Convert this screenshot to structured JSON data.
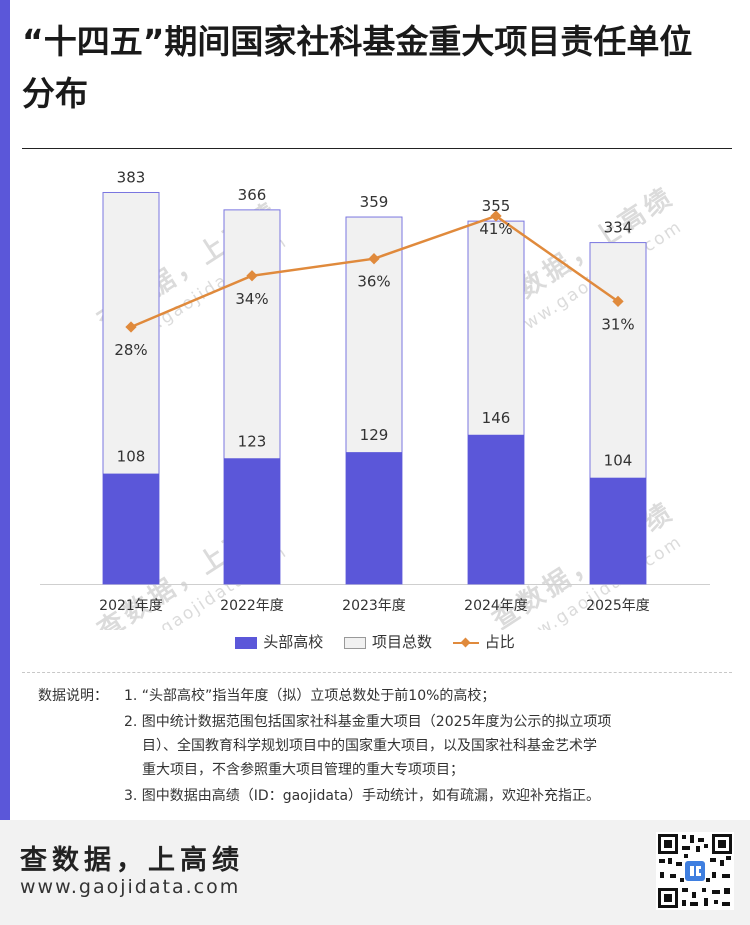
{
  "title": "“十四五”期间国家社科基金重大项目责任单位分布",
  "chart_data": {
    "type": "bar",
    "stacked": true,
    "categories": [
      "2021年度",
      "2022年度",
      "2023年度",
      "2024年度",
      "2025年度"
    ],
    "series": [
      {
        "name": "头部高校",
        "type": "bar",
        "values": [
          108,
          123,
          129,
          146,
          104
        ],
        "color": "#5b57d9"
      },
      {
        "name": "项目总数",
        "type": "bar",
        "values": [
          383,
          366,
          359,
          355,
          334
        ],
        "color": "#f1f1f1"
      },
      {
        "name": "占比",
        "type": "line",
        "values": [
          28,
          34,
          36,
          41,
          31
        ],
        "labels": [
          "28%",
          "34%",
          "36%",
          "41%",
          "31%"
        ],
        "color": "#e08a3c"
      }
    ],
    "legend_position": "bottom",
    "grid": false
  },
  "legend": {
    "head": "头部高校",
    "total": "项目总数",
    "ratio": "占比"
  },
  "notes": {
    "label": "数据说明：",
    "lines": [
      "1. “头部高校”指当年度（拟）立项总数处于前10%的高校；",
      "2. 图中统计数据范围包括国家社科基金重大项目（2025年度为公示的拟立项项",
      "目）、全国教育科学规划项目中的国家重大项目，以及国家社科基金艺术学",
      "重大项目，不含参照重大项目管理的重大专项项目；",
      "3. 图中数据由高绩（ID：gaojidata）手动统计，如有疏漏，欢迎补充指正。"
    ]
  },
  "footer": {
    "brand": "查数据，上高绩",
    "url": "www.gaojidata.com"
  },
  "watermark": {
    "brand": "查数据，上高绩",
    "url": "www.gaojidata.com"
  }
}
